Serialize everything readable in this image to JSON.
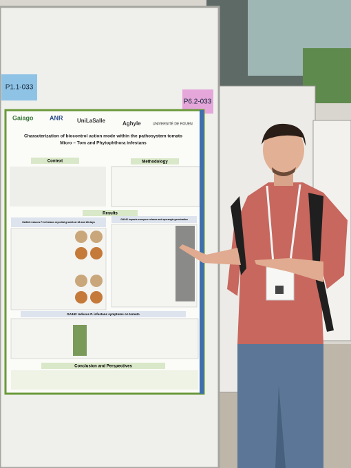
{
  "labels": {
    "left": "P1.1-033",
    "right": "P6.2-033"
  },
  "poster": {
    "logos": [
      "Gaiago",
      "ANR",
      "UniLaSalle",
      "Aghyle",
      "UNIVERSITÉ DE ROUEN"
    ],
    "title": "Characterization of biocontrol action mode within the pathosystem tomato",
    "subtitle": "Micro – Tom and Phytophthora infestans",
    "sections": {
      "context": "Context",
      "methodology": "Methodology",
      "results": "Results",
      "result1": "GA342 reduces P. infestans mycelial growth at 18 and 28 days",
      "result2": "GA342 impacts zoospore release and sporangia germination",
      "result3": "GA342 reduces P. infestans symptoms on tomato",
      "conclusion": "Conclusion and Perspectives"
    }
  }
}
